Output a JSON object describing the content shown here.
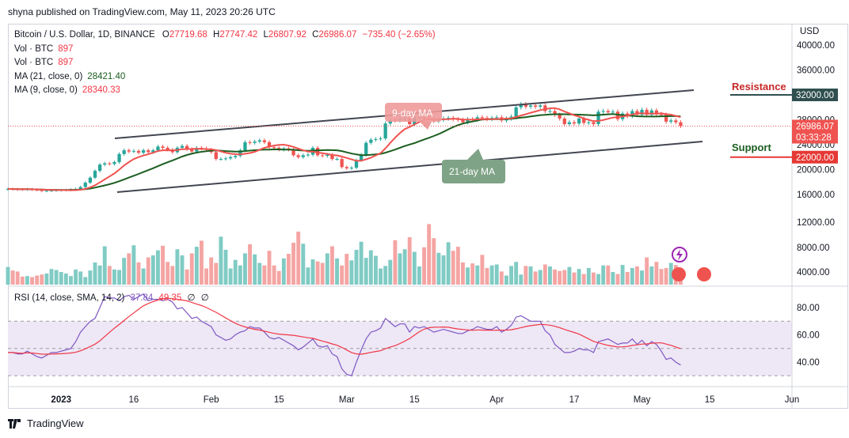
{
  "publisher_line": "shyna published on TradingView.com, May 11, 2023 20:26 UTC",
  "legend": {
    "symbol": "Bitcoin / U.S. Dollar, 1D, BINANCE",
    "o_label": "O",
    "o": "27719.68",
    "h_label": "H",
    "h": "27747.42",
    "l_label": "L",
    "l": "26807.92",
    "c_label": "C",
    "c": "26986.07",
    "change": "−735.40 (−2.65%)",
    "vol1_label": "Vol · BTC",
    "vol1": "897",
    "vol2_label": "Vol · BTC",
    "vol2": "897",
    "ma21_label": "MA (21, close, 0)",
    "ma21": "28421.40",
    "ma9_label": "MA (9, close, 0)",
    "ma9": "28340.33"
  },
  "rsi_legend": {
    "label": "RSI (14, close, SMA, 14, 2)",
    "rsi": "37.84",
    "sma": "49.35",
    "n1": "∅",
    "n2": "∅"
  },
  "currency": "USD",
  "annotations": {
    "resistance": "Resistance",
    "support": "Support",
    "ma9_callout": "9-day MA",
    "ma21_callout": "21-day MA"
  },
  "price_axis": {
    "ticks": [
      "40000.00",
      "36000.00",
      "28000.00",
      "24000.00",
      "20000.00",
      "16000.00",
      "12000.00",
      "8000.00",
      "4000.00"
    ],
    "tags": [
      {
        "text": "32000.00",
        "kind": "resistance"
      },
      {
        "text": "26986.07",
        "kind": "last"
      },
      {
        "text": "03:33:28",
        "kind": "countdown"
      },
      {
        "text": "22000.00",
        "kind": "support"
      }
    ]
  },
  "rsi_axis": {
    "ticks": [
      "80.00",
      "60.00",
      "40.00"
    ]
  },
  "time_axis": {
    "labels": [
      {
        "text": "2023",
        "bold": true
      },
      {
        "text": "16"
      },
      {
        "text": "Feb"
      },
      {
        "text": "15"
      },
      {
        "text": "Mar"
      },
      {
        "text": "15"
      },
      {
        "text": "Apr"
      },
      {
        "text": "17"
      },
      {
        "text": "May"
      },
      {
        "text": "15"
      },
      {
        "text": "Jun"
      }
    ]
  },
  "brand": "TradingView",
  "colors": {
    "up": "#26a69a",
    "down": "#ef5350",
    "ma9": "#ef5350",
    "ma21": "#1b5e20",
    "rsi": "#7e57c2",
    "rsi_sma": "#f23645",
    "channel": "#434651",
    "rsi_band": "#ede7f6",
    "resistance_tag": "#2f4f4f",
    "support_tag": "#e53935"
  },
  "chart_data": [
    {
      "type": "candlestick",
      "title": "Bitcoin / U.S. Dollar, 1D, BINANCE",
      "ylim": [
        14000,
        42000
      ],
      "x_range": [
        "2022-12-21",
        "2023-06-01"
      ],
      "series": [
        {
          "name": "MA (21, close, 0)",
          "last": 28421.4
        },
        {
          "name": "MA (9, close, 0)",
          "last": 28340.33
        }
      ],
      "closes": [
        16900,
        16850,
        16830,
        16800,
        16850,
        16780,
        16700,
        16560,
        16600,
        16650,
        16680,
        16700,
        16720,
        16800,
        16900,
        17200,
        17900,
        18700,
        19800,
        20800,
        21000,
        20900,
        21200,
        22500,
        23100,
        22900,
        23000,
        22700,
        23100,
        22800,
        23100,
        23700,
        23500,
        23200,
        22800,
        23500,
        23800,
        23300,
        22900,
        23500,
        23400,
        23200,
        22800,
        21700,
        21700,
        21800,
        22000,
        22200,
        23100,
        24400,
        24300,
        24500,
        24700,
        24400,
        23600,
        23500,
        23200,
        23400,
        23200,
        22300,
        22000,
        22300,
        22400,
        23500,
        22300,
        22200,
        22400,
        21700,
        21700,
        20400,
        20200,
        20300,
        21500,
        22400,
        24300,
        24800,
        24900,
        25000,
        27400,
        28000,
        27900,
        28100,
        28200,
        27300,
        28400,
        28400,
        28300,
        28100,
        27800,
        28000,
        28200,
        28300,
        28100,
        28000,
        27600,
        28100,
        28000,
        28400,
        28300,
        28100,
        28300,
        28400,
        27900,
        28200,
        28500,
        30000,
        30500,
        30100,
        30300,
        30100,
        30300,
        29400,
        29400,
        28800,
        28200,
        27300,
        27600,
        27400,
        28200,
        27500,
        27600,
        27300,
        29300,
        29400,
        29200,
        29300,
        28100,
        29000,
        28600,
        29400,
        28800,
        29600,
        28800,
        29500,
        28900,
        28800,
        27700,
        27900,
        27600,
        26986
      ],
      "volume_ylim": [
        0,
        13000
      ],
      "volumes": [
        3500,
        2800,
        2600,
        1600,
        1700,
        1500,
        1800,
        2000,
        2200,
        3100,
        2900,
        2500,
        2200,
        1700,
        3000,
        2600,
        1500,
        2800,
        4400,
        3800,
        7600,
        3700,
        3000,
        2900,
        5300,
        6200,
        7800,
        4400,
        3200,
        5400,
        5800,
        6800,
        7700,
        4500,
        3700,
        7000,
        5800,
        3000,
        6200,
        7500,
        8700,
        3200,
        5400,
        4300,
        9500,
        6900,
        3200,
        4900,
        3800,
        6200,
        8000,
        6000,
        4300,
        3800,
        6700,
        3800,
        2700,
        5200,
        6100,
        8300,
        10500,
        8100,
        3400,
        5000,
        4600,
        4300,
        6200,
        7600,
        5200,
        3800,
        6100,
        4800,
        6900,
        8500,
        5300,
        6800,
        5700,
        3200,
        3700,
        4900,
        8800,
        6200,
        7000,
        9400,
        6500,
        3600,
        7400,
        12000,
        9200,
        6300,
        5800,
        8400,
        6700,
        7500,
        4400,
        3400,
        4200,
        3800,
        5900,
        3300,
        3800,
        4000,
        2600,
        1800,
        3700,
        4500,
        2000,
        3700,
        3600,
        2600,
        2900,
        4000,
        3600,
        3000,
        2700,
        2900,
        3500,
        2400,
        3100,
        2100,
        3300,
        2400,
        2100,
        3800,
        3800,
        2500,
        2100,
        3900,
        2500,
        3300,
        3600,
        2800,
        5400,
        3600,
        4500,
        3100,
        3300,
        4300,
        3900,
        3300
      ]
    },
    {
      "type": "line",
      "title": "RSI (14, close, SMA, 14, 2)",
      "ylim": [
        25,
        95
      ],
      "bands": [
        30,
        70
      ],
      "series": [
        {
          "name": "RSI",
          "last": 37.84
        },
        {
          "name": "SMA",
          "last": 49.35
        }
      ],
      "rsi": [
        47,
        47,
        46,
        46,
        48,
        46,
        44,
        43,
        45,
        47,
        47,
        48,
        49,
        50,
        55,
        62,
        66,
        70,
        72,
        80,
        88,
        87,
        87,
        85,
        88,
        89,
        86,
        88,
        90,
        85,
        86,
        86,
        85,
        86,
        84,
        79,
        80,
        76,
        72,
        73,
        70,
        68,
        66,
        60,
        58,
        56,
        57,
        60,
        62,
        63,
        66,
        65,
        65,
        62,
        58,
        57,
        58,
        56,
        54,
        52,
        49,
        51,
        54,
        57,
        52,
        51,
        52,
        46,
        44,
        35,
        31,
        30,
        40,
        49,
        57,
        62,
        63,
        65,
        72,
        69,
        66,
        68,
        68,
        62,
        66,
        65,
        66,
        64,
        62,
        63,
        64,
        63,
        62,
        61,
        61,
        63,
        64,
        66,
        65,
        64,
        64,
        66,
        62,
        64,
        67,
        73,
        74,
        72,
        70,
        70,
        70,
        63,
        60,
        53,
        50,
        47,
        47,
        48,
        50,
        49,
        49,
        47,
        55,
        56,
        57,
        55,
        53,
        54,
        54,
        57,
        53,
        56,
        52,
        55,
        53,
        48,
        42,
        43,
        40,
        37.84
      ]
    }
  ]
}
